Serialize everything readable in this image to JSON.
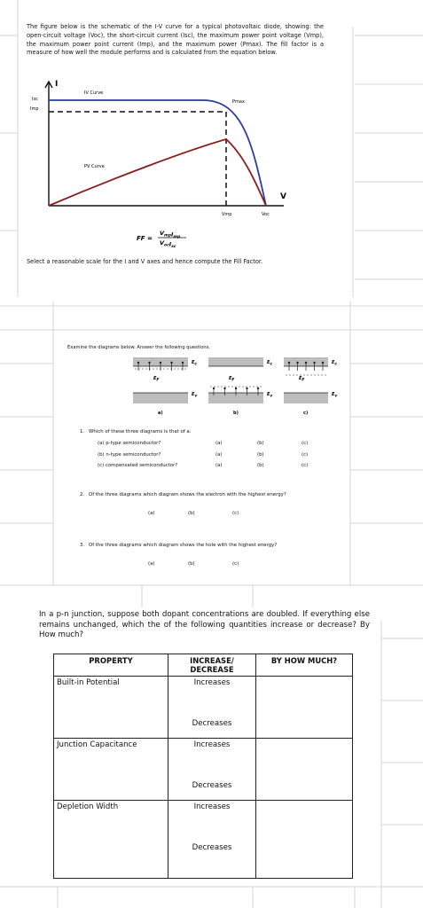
{
  "problem1": {
    "intro": "The figure below is the schematic of the I-V curve for a typical photovoltaic diode, showing: the open-circuit voltage (Voc), the short-circuit current (Isc), the maximum power point voltage (Vmp), the maximum power point current (Imp), and the maximum power (Pmax). The fill factor is a measure of how well the module performs and is calculated from the equation below.",
    "axis_i": "I",
    "axis_v": "V",
    "isc": "Isc",
    "imp": "Imp",
    "iv_curve": "IV Curve",
    "pv_curve": "PV Curve",
    "pmax": "Pmax",
    "vmp": "Vmp",
    "voc": "Voc",
    "formula": {
      "lhs": "FF =",
      "numerator": [
        {
          "base": "V",
          "sub": "mp"
        },
        {
          "base": "I",
          "sub": "mp"
        }
      ],
      "denominator": [
        {
          "base": "V",
          "sub": "oc"
        },
        {
          "base": "I",
          "sub": "sc"
        }
      ]
    },
    "instruction": "Select a reasonable scale for the I and V axes and hence compute the Fill Factor."
  },
  "problem2": {
    "intro": "Examine the diagrams below. Answer the following questions.",
    "diagrams": [
      {
        "label": "a)",
        "ec": {
          "base": "E",
          "sub": "c"
        },
        "ef": {
          "base": "E",
          "sub": "F"
        },
        "ev": {
          "base": "E",
          "sub": "v"
        }
      },
      {
        "label": "b)",
        "ec": {
          "base": "E",
          "sub": "c"
        },
        "ef": {
          "base": "E",
          "sub": "F"
        },
        "ev": {
          "base": "E",
          "sub": "v"
        }
      },
      {
        "label": "c)",
        "ec": {
          "base": "E",
          "sub": "c"
        },
        "ef": {
          "base": "E",
          "sub": "F"
        },
        "ev": {
          "base": "E",
          "sub": "v"
        }
      }
    ],
    "questions": [
      {
        "number": "1.",
        "text": "Which of these three diagrams is that of a:",
        "items": [
          {
            "text": "(a) p-type semiconductor?",
            "choices": [
              "(a)",
              "(b)",
              "(c)"
            ]
          },
          {
            "text": "(b) n-type semiconductor?",
            "choices": [
              "(a)",
              "(b)",
              "(c)"
            ]
          },
          {
            "text": "(c) compensated semiconductor?",
            "choices": [
              "(a)",
              "(b)",
              "(c)"
            ]
          }
        ]
      },
      {
        "number": "2.",
        "text": "Of the three diagrams which diagram shows the electron with the highest energy?",
        "choices": [
          "(a)",
          "(b)",
          "(c)"
        ]
      },
      {
        "number": "3.",
        "text": "Of the three diagrams which diagram shows the hole with the highest energy?",
        "choices": [
          "(a)",
          "(b)",
          "(c)"
        ]
      }
    ]
  },
  "problem3": {
    "intro": "In a p-n junction, suppose both dopant concentrations are doubled. If everything else remains unchanged, which the of the following quantities increase or decrease? By How much?",
    "table": {
      "headers": [
        "PROPERTY",
        "INCREASE/ DECREASE",
        "BY HOW MUCH?"
      ],
      "rows": [
        {
          "property": "Built-in Potential",
          "options": [
            "Increases",
            "Decreases"
          ]
        },
        {
          "property": "Junction Capacitance",
          "options": [
            "Increases",
            "Decreases"
          ]
        },
        {
          "property": "Depletion Width",
          "options": [
            "Increases",
            "Decreases"
          ]
        }
      ]
    }
  }
}
